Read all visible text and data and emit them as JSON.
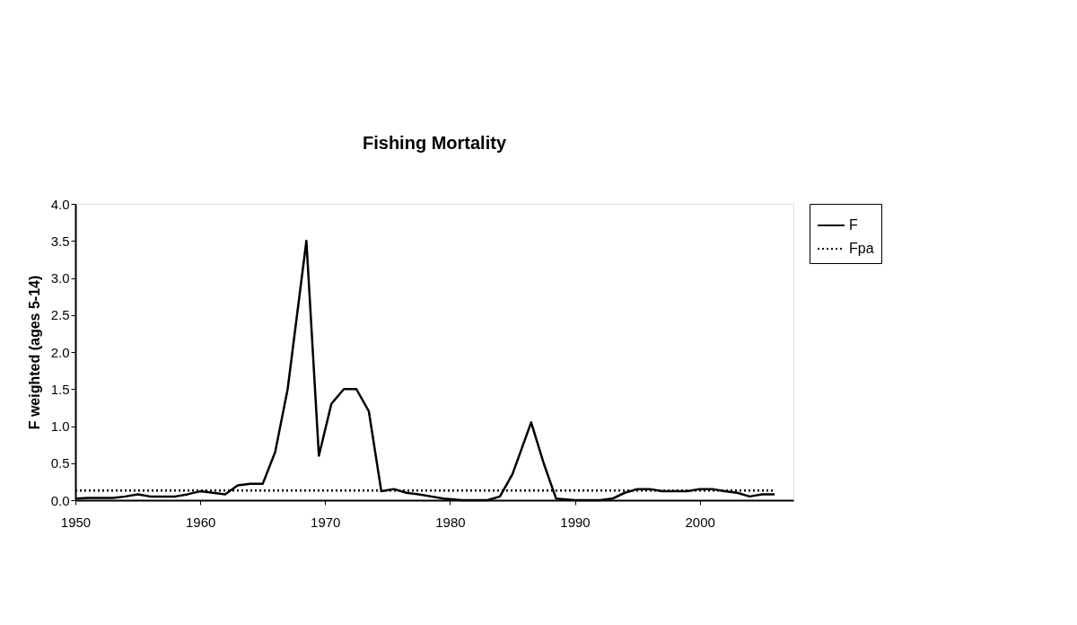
{
  "chart_data": {
    "type": "line",
    "title": "Fishing Mortality",
    "ylabel": "F weighted (ages 5-14)",
    "xlim": [
      1950,
      2007.5
    ],
    "xticks": [
      1950,
      1960,
      1970,
      1980,
      1990,
      2000
    ],
    "ylim": [
      0,
      4
    ],
    "yticks": [
      {
        "value": 0,
        "label": "0.0"
      },
      {
        "value": 0.5,
        "label": "0.5"
      },
      {
        "value": 1,
        "label": "1.0"
      },
      {
        "value": 1.5,
        "label": "1.5"
      },
      {
        "value": 2,
        "label": "2.0"
      },
      {
        "value": 2.5,
        "label": "2.5"
      },
      {
        "value": 3,
        "label": "3.0"
      },
      {
        "value": 3.5,
        "label": "3.5"
      },
      {
        "value": 4,
        "label": "4.0"
      }
    ],
    "grid": false,
    "legend": "right",
    "marker": "none",
    "series": [
      {
        "name": "F",
        "color": "#000000",
        "line_style": "solid",
        "x": [
          1950,
          1951,
          1952,
          1953,
          1954,
          1955,
          1956,
          1957,
          1958,
          1959,
          1960,
          1961,
          1962,
          1963,
          1964,
          1965,
          1966,
          1967,
          1968.5,
          1969.5,
          1970.5,
          1971.5,
          1972.5,
          1973.5,
          1974.5,
          1975.5,
          1976.5,
          1977.5,
          1978.5,
          1979.5,
          1981,
          1982,
          1983,
          1984,
          1985,
          1986.5,
          1987.5,
          1988.5,
          1990,
          1991,
          1992,
          1993,
          1994,
          1995,
          1996,
          1997,
          1998,
          1999,
          2000,
          2001,
          2002,
          2003,
          2004,
          2005,
          2006
        ],
        "values": [
          0.02,
          0.03,
          0.03,
          0.03,
          0.05,
          0.08,
          0.05,
          0.05,
          0.05,
          0.08,
          0.12,
          0.1,
          0.08,
          0.2,
          0.22,
          0.22,
          0.65,
          1.5,
          3.5,
          0.6,
          1.3,
          1.5,
          1.5,
          1.2,
          0.12,
          0.15,
          0.1,
          0.08,
          0.05,
          0.02,
          0.0,
          0.0,
          0.0,
          0.05,
          0.35,
          1.05,
          0.5,
          0.02,
          0.0,
          0.0,
          0.0,
          0.02,
          0.1,
          0.15,
          0.15,
          0.12,
          0.12,
          0.12,
          0.15,
          0.15,
          0.12,
          0.1,
          0.05,
          0.08,
          0.08
        ]
      },
      {
        "name": "Fpa",
        "color": "#000000",
        "line_style": "dotted",
        "x": [
          1950,
          2006
        ],
        "values": [
          0.13,
          0.13
        ]
      }
    ]
  }
}
